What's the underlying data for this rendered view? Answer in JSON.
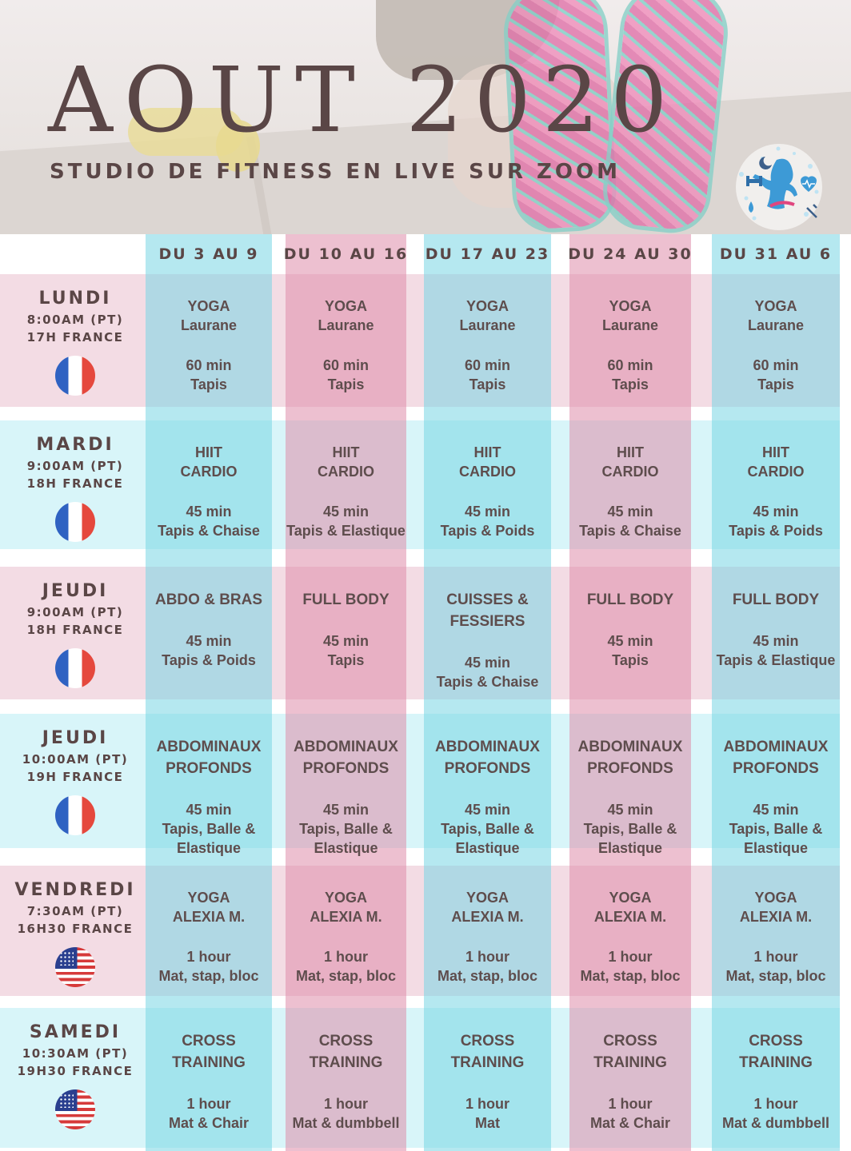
{
  "header": {
    "title": "AOUT 2020",
    "subtitle": "STUDIO DE FITNESS EN LIVE SUR ZOOM",
    "logo_icon": "fitness-woman-logo-icon"
  },
  "weeks": [
    "DU 3 AU 9",
    "DU 10 AU 16",
    "DU 17 AU 23",
    "DU 24 AU 30",
    "DU 31 AU 6"
  ],
  "days": [
    {
      "name": "LUNDI",
      "time_pt": "8:00AM (PT)",
      "time_fr": "17H FRANCE",
      "flag": "france-flag-icon"
    },
    {
      "name": "MARDI",
      "time_pt": "9:00AM (PT)",
      "time_fr": "18H FRANCE",
      "flag": "france-flag-icon"
    },
    {
      "name": "JEUDI",
      "time_pt": "9:00AM (PT)",
      "time_fr": "18H FRANCE",
      "flag": "france-flag-icon"
    },
    {
      "name": "JEUDI",
      "time_pt": "10:00AM (PT)",
      "time_fr": "19H FRANCE",
      "flag": "france-flag-icon"
    },
    {
      "name": "VENDREDI",
      "time_pt": "7:30AM (PT)",
      "time_fr": "16H30 FRANCE",
      "flag": "usa-flag-icon"
    },
    {
      "name": "SAMEDI",
      "time_pt": "10:30AM (PT)",
      "time_fr": "19H30 FRANCE",
      "flag": "usa-flag-icon"
    }
  ],
  "sessions": [
    [
      {
        "cls": "YOGA",
        "coach": "Laurane",
        "dur": "60 min",
        "equip": "Tapis"
      },
      {
        "cls": "YOGA",
        "coach": "Laurane",
        "dur": "60 min",
        "equip": "Tapis"
      },
      {
        "cls": "YOGA",
        "coach": "Laurane",
        "dur": "60 min",
        "equip": "Tapis"
      },
      {
        "cls": "YOGA",
        "coach": "Laurane",
        "dur": "60 min",
        "equip": "Tapis"
      },
      {
        "cls": "YOGA",
        "coach": "Laurane",
        "dur": "60 min",
        "equip": "Tapis"
      }
    ],
    [
      {
        "cls": "HIIT",
        "coach": "CARDIO",
        "dur": "45 min",
        "equip": "Tapis & Chaise"
      },
      {
        "cls": "HIIT",
        "coach": "CARDIO",
        "dur": "45 min",
        "equip": "Tapis & Elastique"
      },
      {
        "cls": "HIIT",
        "coach": "CARDIO",
        "dur": "45 min",
        "equip": "Tapis & Poids"
      },
      {
        "cls": "HIIT",
        "coach": "CARDIO",
        "dur": "45 min",
        "equip": "Tapis & Chaise"
      },
      {
        "cls": "HIIT",
        "coach": "CARDIO",
        "dur": "45 min",
        "equip": "Tapis & Poids"
      }
    ],
    [
      {
        "cls": "ABDO & BRAS",
        "coach": "",
        "dur": "45 min",
        "equip": "Tapis & Poids"
      },
      {
        "cls": "FULL BODY",
        "coach": "",
        "dur": "45 min",
        "equip": "Tapis"
      },
      {
        "cls": "CUISSES &\nFESSIERS",
        "coach": "",
        "dur": "45 min",
        "equip": "Tapis & Chaise"
      },
      {
        "cls": "FULL BODY",
        "coach": "",
        "dur": "45 min",
        "equip": "Tapis"
      },
      {
        "cls": "FULL BODY",
        "coach": "",
        "dur": "45 min",
        "equip": "Tapis & Elastique"
      }
    ],
    [
      {
        "cls": "ABDOMINAUX\nPROFONDS",
        "coach": "",
        "dur": "45 min",
        "equip": "Tapis, Balle &\nElastique"
      },
      {
        "cls": "ABDOMINAUX\nPROFONDS",
        "coach": "",
        "dur": "45 min",
        "equip": "Tapis, Balle &\nElastique"
      },
      {
        "cls": "ABDOMINAUX\nPROFONDS",
        "coach": "",
        "dur": "45 min",
        "equip": "Tapis, Balle &\nElastique"
      },
      {
        "cls": "ABDOMINAUX\nPROFONDS",
        "coach": "",
        "dur": "45 min",
        "equip": "Tapis, Balle &\nElastique"
      },
      {
        "cls": "ABDOMINAUX\nPROFONDS",
        "coach": "",
        "dur": "45 min",
        "equip": "Tapis, Balle &\nElastique"
      }
    ],
    [
      {
        "cls": "YOGA",
        "coach": "ALEXIA M.",
        "dur": "1 hour",
        "equip": "Mat, stap, bloc"
      },
      {
        "cls": "YOGA",
        "coach": "ALEXIA M.",
        "dur": "1 hour",
        "equip": "Mat, stap, bloc"
      },
      {
        "cls": "YOGA",
        "coach": "ALEXIA M.",
        "dur": "1 hour",
        "equip": "Mat, stap, bloc"
      },
      {
        "cls": "YOGA",
        "coach": "ALEXIA M.",
        "dur": "1 hour",
        "equip": "Mat, stap, bloc"
      },
      {
        "cls": "YOGA",
        "coach": "ALEXIA M.",
        "dur": "1 hour",
        "equip": "Mat, stap, bloc"
      }
    ],
    [
      {
        "cls": "CROSS\nTRAINING",
        "coach": "",
        "dur": "1 hour",
        "equip": "Mat & Chair"
      },
      {
        "cls": "CROSS\nTRAINING",
        "coach": "",
        "dur": "1 hour",
        "equip": "Mat & dumbbell"
      },
      {
        "cls": "CROSS\nTRAINING",
        "coach": "",
        "dur": "1 hour",
        "equip": "Mat"
      },
      {
        "cls": "CROSS\nTRAINING",
        "coach": "",
        "dur": "1 hour",
        "equip": "Mat & Chair"
      },
      {
        "cls": "CROSS\nTRAINING",
        "coach": "",
        "dur": "1 hour",
        "equip": "Mat & dumbbell"
      }
    ]
  ],
  "colors": {
    "pink_row": "#f3dce4",
    "cyan_row": "#d8f5f9",
    "cyan_col": "#a5e6ee",
    "pink_col": "#e8b0c6",
    "text": "#5e4d4d"
  }
}
